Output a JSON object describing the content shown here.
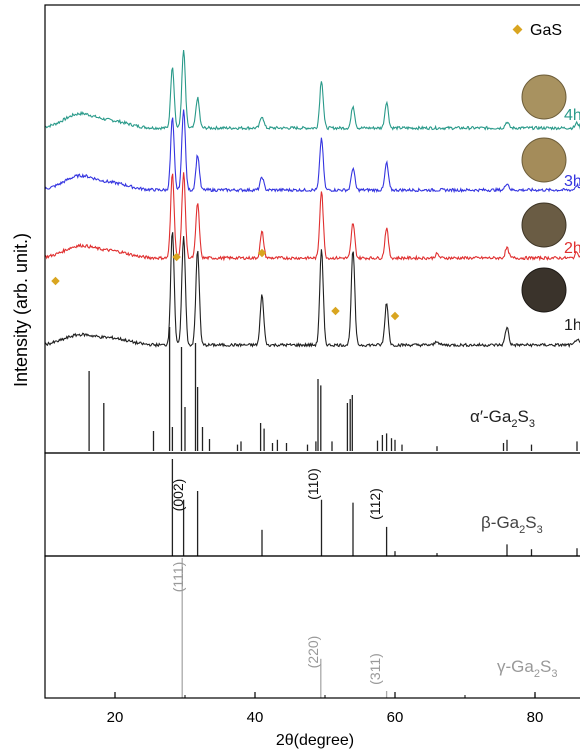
{
  "chart_data": {
    "type": "line",
    "xlabel": "2θ(degree)",
    "ylabel": "Intensity (arb. unit.)",
    "xlim": [
      10,
      90
    ],
    "xticks": [
      "20",
      "40",
      "60",
      "80"
    ],
    "xtick_values": [
      20,
      40,
      60,
      80
    ],
    "legend": {
      "label": "GaS",
      "marker_color": "#d9a520",
      "placement": "top-right"
    },
    "series": [
      {
        "name": "4h",
        "color": "#2a9a8a",
        "baseline": 48,
        "hump": 14,
        "peaks": [
          [
            28.2,
            62
          ],
          [
            29.8,
            78
          ],
          [
            31.8,
            30
          ],
          [
            41.0,
            12
          ],
          [
            49.5,
            48
          ],
          [
            54.0,
            22
          ],
          [
            58.8,
            26
          ],
          [
            76.0,
            6
          ],
          [
            86.0,
            5
          ]
        ]
      },
      {
        "name": "3h",
        "color": "#3535e0",
        "baseline": 48,
        "hump": 14,
        "peaks": [
          [
            28.2,
            72
          ],
          [
            29.8,
            82
          ],
          [
            31.8,
            35
          ],
          [
            41.0,
            13
          ],
          [
            49.5,
            52
          ],
          [
            54.0,
            22
          ],
          [
            58.8,
            27
          ],
          [
            76.0,
            7
          ],
          [
            86.0,
            5
          ]
        ]
      },
      {
        "name": "2h",
        "color": "#e03030",
        "baseline": 48,
        "hump": 12,
        "peaks": [
          [
            28.2,
            85
          ],
          [
            29.8,
            86
          ],
          [
            31.8,
            55
          ],
          [
            41.0,
            26
          ],
          [
            49.5,
            68
          ],
          [
            54.0,
            35
          ],
          [
            58.8,
            30
          ],
          [
            66.0,
            4
          ],
          [
            76.0,
            10
          ],
          [
            86.0,
            6
          ]
        ]
      },
      {
        "name": "1h",
        "color": "#202020",
        "baseline": 48,
        "hump": 10,
        "peaks": [
          [
            28.2,
            115
          ],
          [
            29.8,
            110
          ],
          [
            31.8,
            95
          ],
          [
            41.0,
            50
          ],
          [
            49.5,
            95
          ],
          [
            54.0,
            95
          ],
          [
            58.8,
            42
          ],
          [
            66.0,
            4
          ],
          [
            76.0,
            18
          ],
          [
            86.0,
            6
          ]
        ]
      }
    ],
    "gas_markers": [
      11.5,
      28.8,
      41.0,
      51.5,
      60.0
    ],
    "references": [
      {
        "label_main": "α′-Ga",
        "label_sub1": "2",
        "label_mid": "S",
        "label_sub2": "3",
        "color": "#222222",
        "sticks": [
          [
            16.3,
            1.0
          ],
          [
            18.4,
            0.6
          ],
          [
            25.5,
            0.25
          ],
          [
            27.8,
            1.55
          ],
          [
            28.2,
            0.3
          ],
          [
            29.5,
            1.3
          ],
          [
            30.0,
            0.55
          ],
          [
            31.5,
            1.35
          ],
          [
            31.8,
            0.8
          ],
          [
            32.5,
            0.3
          ],
          [
            33.5,
            0.15
          ],
          [
            37.5,
            0.08
          ],
          [
            38.0,
            0.12
          ],
          [
            40.8,
            0.35
          ],
          [
            41.3,
            0.28
          ],
          [
            42.5,
            0.1
          ],
          [
            43.2,
            0.14
          ],
          [
            44.5,
            0.1
          ],
          [
            47.5,
            0.08
          ],
          [
            48.7,
            0.12
          ],
          [
            49.0,
            0.9
          ],
          [
            49.4,
            0.82
          ],
          [
            51.0,
            0.12
          ],
          [
            53.2,
            0.6
          ],
          [
            53.6,
            0.65
          ],
          [
            53.9,
            0.7
          ],
          [
            57.5,
            0.13
          ],
          [
            58.2,
            0.2
          ],
          [
            58.8,
            0.22
          ],
          [
            59.5,
            0.16
          ],
          [
            60.0,
            0.14
          ],
          [
            61.0,
            0.08
          ],
          [
            66.0,
            0.06
          ],
          [
            75.5,
            0.1
          ],
          [
            76.0,
            0.14
          ],
          [
            79.5,
            0.08
          ],
          [
            86.0,
            0.12
          ]
        ]
      },
      {
        "label_main": "β-Ga",
        "label_sub1": "2",
        "label_mid": "S",
        "label_sub2": "3",
        "color": "#222222",
        "sticks": [
          [
            28.2,
            1.0
          ],
          [
            29.8,
            0.58
          ],
          [
            31.8,
            0.67
          ],
          [
            41.0,
            0.27
          ],
          [
            49.5,
            0.58
          ],
          [
            54.0,
            0.55
          ],
          [
            58.8,
            0.3
          ],
          [
            60.0,
            0.05
          ],
          [
            66.0,
            0.03
          ],
          [
            76.0,
            0.12
          ],
          [
            79.5,
            0.07
          ],
          [
            86.0,
            0.08
          ]
        ],
        "hkl": [
          {
            "x": 29.8,
            "label": "(002)"
          },
          {
            "x": 49.5,
            "label": "(110)"
          },
          {
            "x": 58.8,
            "label": "(112)"
          }
        ]
      },
      {
        "label_main": "γ-Ga",
        "label_sub1": "2",
        "label_mid": "S",
        "label_sub2": "3",
        "color": "#aaaaaa",
        "sticks": [
          [
            29.6,
            1.0
          ],
          [
            49.4,
            0.28
          ],
          [
            58.8,
            0.05
          ],
          [
            80.0,
            0.03
          ]
        ],
        "hkl": [
          {
            "x": 29.6,
            "label": "(111)"
          },
          {
            "x": 49.4,
            "label": "(220)"
          },
          {
            "x": 58.8,
            "label": "(311)"
          }
        ]
      }
    ]
  }
}
